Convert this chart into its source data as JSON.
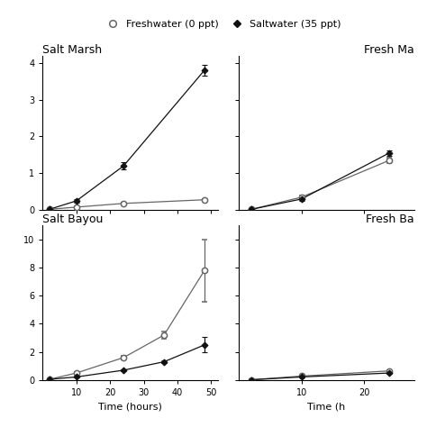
{
  "legend": {
    "freshwater_label": "Freshwater (0 ppt)",
    "saltwater_label": "Saltwater (35 ppt)"
  },
  "salt_marsh": {
    "title": "Salt Marsh",
    "freshwater": {
      "x": [
        2,
        10,
        24,
        48
      ],
      "y": [
        0.02,
        0.08,
        0.18,
        0.28
      ],
      "yerr": [
        0.01,
        0.02,
        0.03,
        0.03
      ]
    },
    "saltwater": {
      "x": [
        2,
        10,
        24,
        48
      ],
      "y": [
        0.02,
        0.25,
        1.2,
        3.8
      ],
      "yerr": [
        0.01,
        0.05,
        0.1,
        0.15
      ]
    },
    "xlim": [
      0,
      52
    ],
    "ylim": [
      0,
      4.2
    ],
    "xticks": [
      10,
      20,
      30,
      40,
      50
    ],
    "yticks": [
      0,
      1,
      2,
      3,
      4
    ]
  },
  "fresh_marsh": {
    "title": "Fresh Ma",
    "freshwater": {
      "x": [
        2,
        10,
        24
      ],
      "y": [
        0.02,
        0.35,
        1.35
      ],
      "yerr": [
        0.01,
        0.05,
        0.08
      ]
    },
    "saltwater": {
      "x": [
        2,
        10,
        24
      ],
      "y": [
        0.02,
        0.3,
        1.55
      ],
      "yerr": [
        0.01,
        0.05,
        0.08
      ]
    },
    "xlim": [
      0,
      28
    ],
    "ylim": [
      0,
      4.2
    ],
    "xticks": [
      10,
      20
    ],
    "yticks": [
      0,
      1,
      2,
      3,
      4
    ]
  },
  "salt_bayou": {
    "title": "Salt Bayou",
    "freshwater": {
      "x": [
        2,
        10,
        24,
        36,
        48
      ],
      "y": [
        0.05,
        0.5,
        1.6,
        3.2,
        7.8
      ],
      "yerr": [
        0.02,
        0.08,
        0.15,
        0.25,
        2.2
      ]
    },
    "saltwater": {
      "x": [
        2,
        10,
        24,
        36,
        48
      ],
      "y": [
        0.05,
        0.22,
        0.7,
        1.3,
        2.5
      ],
      "yerr": [
        0.02,
        0.04,
        0.08,
        0.1,
        0.55
      ]
    },
    "xlim": [
      0,
      52
    ],
    "ylim": [
      0,
      11.0
    ],
    "xticks": [
      10,
      20,
      30,
      40,
      50
    ],
    "yticks": [
      0,
      2,
      4,
      6,
      8,
      10
    ]
  },
  "fresh_bayou": {
    "title": "Fresh Ba",
    "freshwater": {
      "x": [
        2,
        10,
        24
      ],
      "y": [
        0.02,
        0.28,
        0.65
      ],
      "yerr": [
        0.01,
        0.03,
        0.05
      ]
    },
    "saltwater": {
      "x": [
        2,
        10,
        24
      ],
      "y": [
        0.02,
        0.22,
        0.5
      ],
      "yerr": [
        0.01,
        0.03,
        0.04
      ]
    },
    "xlim": [
      0,
      28
    ],
    "ylim": [
      0,
      11.0
    ],
    "xticks": [
      10,
      20
    ],
    "yticks": [
      0,
      2,
      4,
      6,
      8,
      10
    ]
  },
  "color_freshwater": "#666666",
  "color_saltwater": "#111111",
  "background": "#ffffff",
  "fw_label": "Freshwater (0 ppt)",
  "sw_label": "Saltwater (35 ppt)"
}
